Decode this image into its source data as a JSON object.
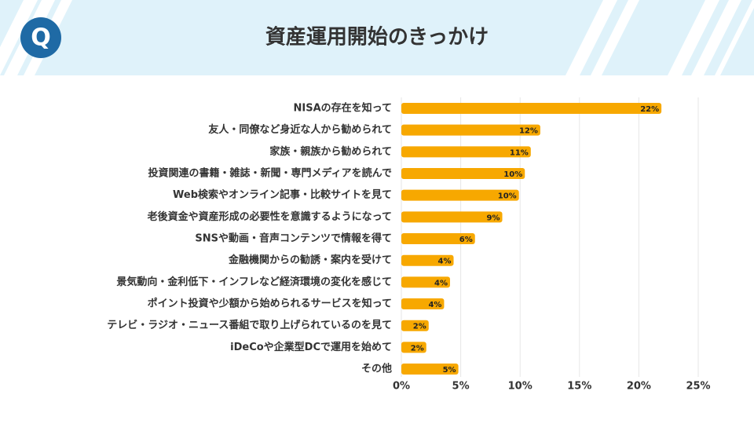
{
  "logo": "Q",
  "chart_data": {
    "type": "hbar",
    "title": "資産運用開始のきっかけ",
    "categories": [
      "NISAの存在を知って",
      "友人・同僚など身近な人から勧められて",
      "家族・親族から勧められて",
      "投資関連の書籍・雑誌・新聞・専門メディアを読んで",
      "Web検索やオンライン記事・比較サイトを見て",
      "老後資金や資産形成の必要性を意識するようになって",
      "SNSや動画・音声コンテンツで情報を得て",
      "金融機関からの勧誘・案内を受けて",
      "景気動向・金利低下・インフレなど経済環境の変化を感じて",
      "ポイント投資や少額から始められるサービスを知って",
      "テレビ・ラジオ・ニュース番組で取り上げられているのを見て",
      "iDeCoや企業型DCで運用を始めて",
      "その他"
    ],
    "values": [
      21.9,
      11.7,
      10.9,
      10.4,
      9.9,
      8.5,
      6.2,
      4.4,
      4.1,
      3.6,
      2.3,
      2.1,
      4.8
    ],
    "value_labels": [
      "22%",
      "12%",
      "11%",
      "10%",
      "10%",
      "9%",
      "6%",
      "4%",
      "4%",
      "4%",
      "2%",
      "2%",
      "5%"
    ],
    "color": "#f7a800",
    "xlim": [
      0,
      25
    ],
    "xticks": [
      {
        "value": 0,
        "label": "0%"
      },
      {
        "value": 5,
        "label": "5%"
      },
      {
        "value": 10,
        "label": "10%"
      },
      {
        "value": 15,
        "label": "15%"
      },
      {
        "value": 20,
        "label": "20%"
      },
      {
        "value": 25,
        "label": "25%"
      }
    ],
    "grid": true
  }
}
